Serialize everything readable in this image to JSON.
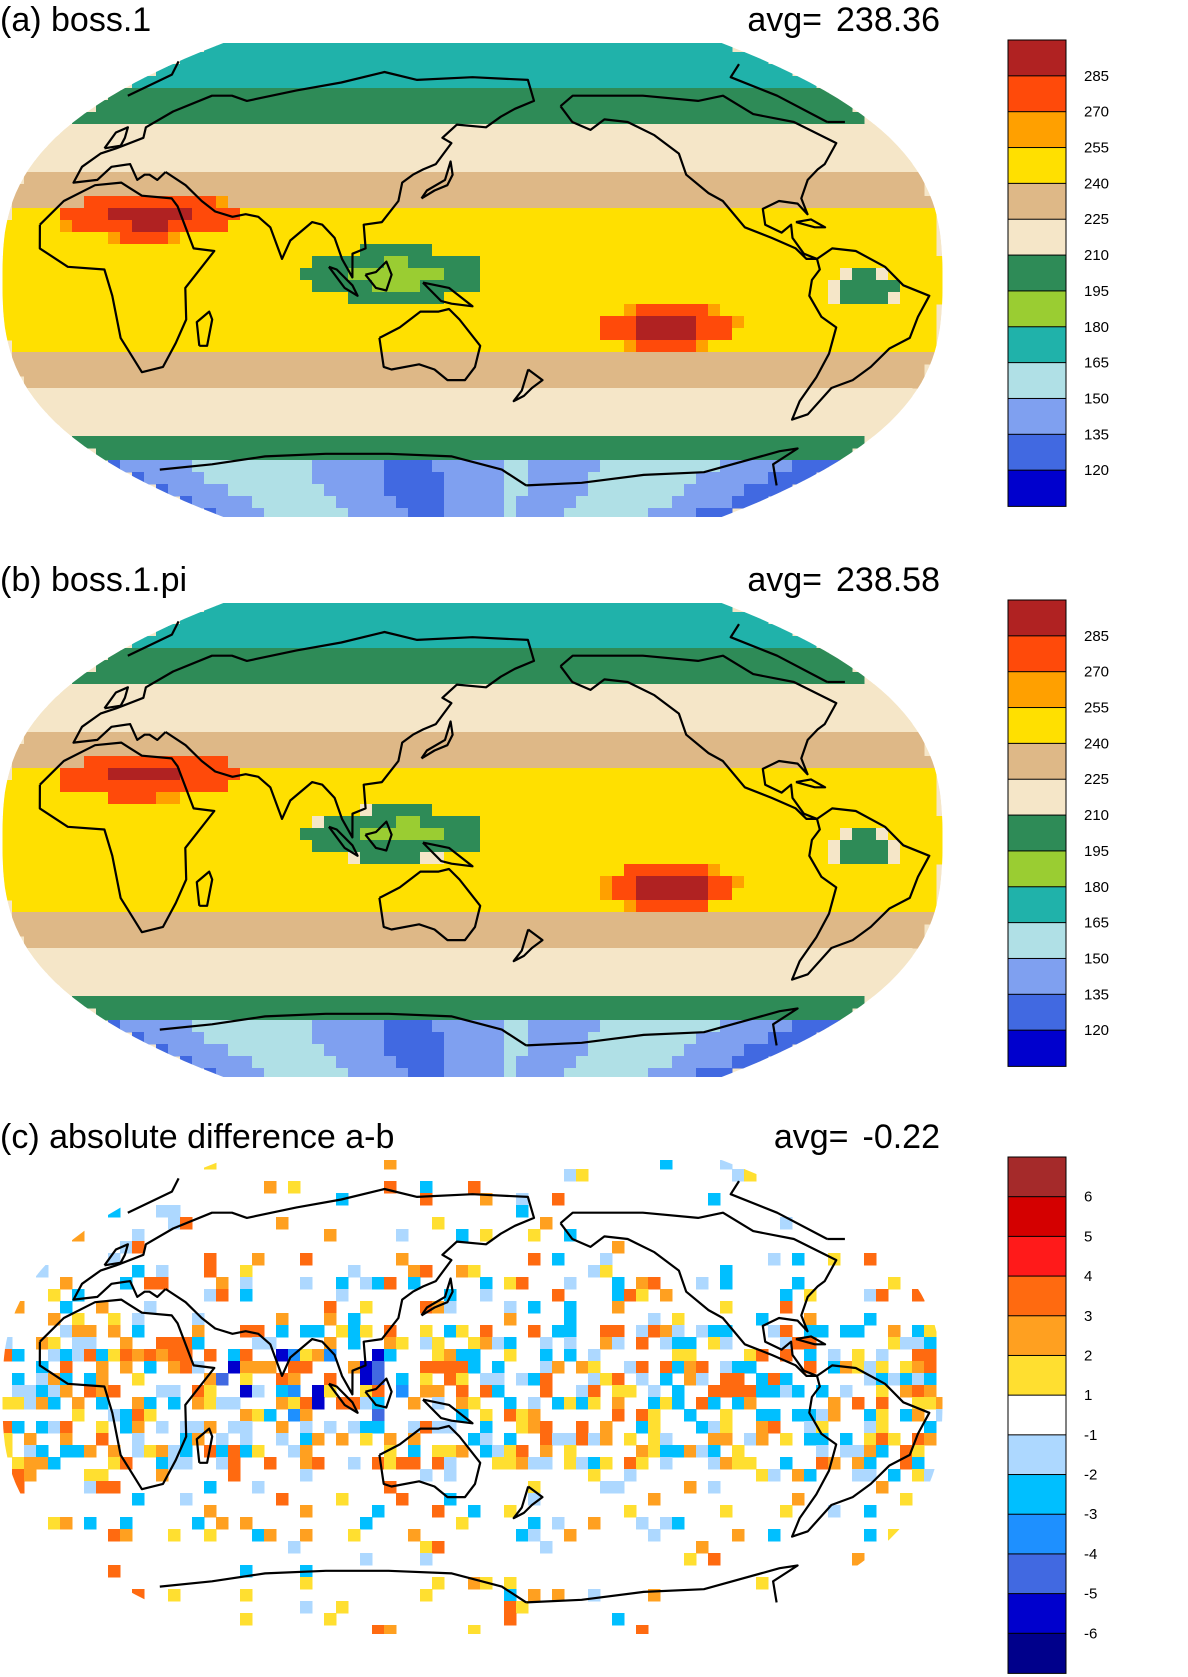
{
  "panels": [
    {
      "id": "a",
      "title": "(a) boss.1",
      "avg_label": "avg=",
      "avg_value": "238.36",
      "colorbar": {
        "labels": [
          "285",
          "270",
          "255",
          "240",
          "225",
          "210",
          "195",
          "180",
          "165",
          "150",
          "135",
          "120"
        ],
        "colors": [
          "#b02222",
          "#ff4a0a",
          "#ffa000",
          "#ffe000",
          "#deb887",
          "#f5e6c8",
          "#2e8b57",
          "#9acd32",
          "#20b2aa",
          "#b0e0e6",
          "#7fa0f0",
          "#4169e1",
          "#0000cd"
        ]
      }
    },
    {
      "id": "b",
      "title": "(b) boss.1.pi",
      "avg_label": "avg=",
      "avg_value": "238.58",
      "colorbar": {
        "labels": [
          "285",
          "270",
          "255",
          "240",
          "225",
          "210",
          "195",
          "180",
          "165",
          "150",
          "135",
          "120"
        ],
        "colors": [
          "#b02222",
          "#ff4a0a",
          "#ffa000",
          "#ffe000",
          "#deb887",
          "#f5e6c8",
          "#2e8b57",
          "#9acd32",
          "#20b2aa",
          "#b0e0e6",
          "#7fa0f0",
          "#4169e1",
          "#0000cd"
        ]
      }
    },
    {
      "id": "c",
      "title": "(c) absolute difference a-b",
      "avg_label": "avg=",
      "avg_value": "-0.22",
      "colorbar": {
        "labels": [
          "6",
          "5",
          "4",
          "3",
          "2",
          "1",
          "-1",
          "-2",
          "-3",
          "-4",
          "-5",
          "-6"
        ],
        "colors": [
          "#a52a2a",
          "#d40000",
          "#ff1a1a",
          "#ff6a10",
          "#ffa020",
          "#ffdf30",
          "#ffffff",
          "#add8ff",
          "#00bfff",
          "#1e90ff",
          "#4169e1",
          "#0000cd",
          "#00008b"
        ]
      }
    }
  ]
}
